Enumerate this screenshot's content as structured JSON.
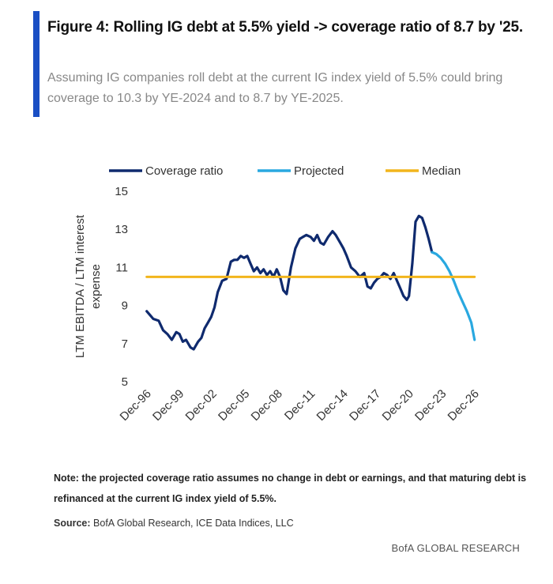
{
  "header": {
    "title": "Figure 4: Rolling IG debt at 5.5% yield -> coverage ratio of 8.7 by '25.",
    "subtitle": "Assuming IG companies roll debt at the current IG index yield of 5.5% could bring coverage to 10.3 by YE-2024 and to 8.7 by YE-2025."
  },
  "colors": {
    "accent": "#1a4fc4",
    "coverage": "#0f2a6e",
    "projected": "#29a8e0",
    "median": "#f2b51c"
  },
  "footer": {
    "note": "Note: the projected coverage ratio assumes no change in debt or earnings, and that maturing debt is refinanced at the current IG index yield of 5.5%.",
    "source_label": "Source:",
    "source_text": "BofA Global Research, ICE Data Indices, LLC",
    "brand": "BofA GLOBAL RESEARCH"
  },
  "chart_data": {
    "type": "line",
    "ylabel": "LTM EBITDA / LTM interest expense",
    "ylim": [
      5,
      15
    ],
    "yticks": [
      5,
      7,
      9,
      11,
      13,
      15
    ],
    "xlim": [
      1996.92,
      2026.92
    ],
    "xticks": [
      {
        "label": "Dec-96",
        "x": 1996.92
      },
      {
        "label": "Dec-99",
        "x": 1999.92
      },
      {
        "label": "Dec-02",
        "x": 2002.92
      },
      {
        "label": "Dec-05",
        "x": 2005.92
      },
      {
        "label": "Dec-08",
        "x": 2008.92
      },
      {
        "label": "Dec-11",
        "x": 2011.92
      },
      {
        "label": "Dec-14",
        "x": 2014.92
      },
      {
        "label": "Dec-17",
        "x": 2017.92
      },
      {
        "label": "Dec-20",
        "x": 2020.92
      },
      {
        "label": "Dec-23",
        "x": 2023.92
      },
      {
        "label": "Dec-26",
        "x": 2026.92
      }
    ],
    "grid": false,
    "legend": "top",
    "series": [
      {
        "name": "Coverage ratio",
        "x": [
          1996.9,
          1997.2,
          1997.5,
          1998.0,
          1998.4,
          1998.8,
          1999.2,
          1999.6,
          1999.9,
          2000.2,
          2000.5,
          2000.9,
          2001.2,
          2001.6,
          2001.9,
          2002.2,
          2002.5,
          2002.8,
          2003.1,
          2003.4,
          2003.8,
          2004.2,
          2004.6,
          2004.9,
          2005.2,
          2005.5,
          2005.8,
          2006.1,
          2006.4,
          2006.7,
          2007.0,
          2007.3,
          2007.6,
          2007.9,
          2008.2,
          2008.5,
          2008.8,
          2009.1,
          2009.4,
          2009.7,
          2010.1,
          2010.5,
          2010.9,
          2011.2,
          2011.5,
          2011.9,
          2012.2,
          2012.5,
          2012.8,
          2013.1,
          2013.5,
          2013.9,
          2014.2,
          2014.6,
          2014.9,
          2015.2,
          2015.6,
          2016.0,
          2016.4,
          2016.8,
          2017.1,
          2017.4,
          2017.7,
          2018.0,
          2018.3,
          2018.6,
          2018.9,
          2019.2,
          2019.5,
          2019.8,
          2020.1,
          2020.4,
          2020.7,
          2020.9,
          2021.2,
          2021.5,
          2021.8,
          2022.1,
          2022.4,
          2022.7,
          2023.0
        ],
        "y": [
          8.7,
          8.5,
          8.3,
          8.2,
          7.7,
          7.5,
          7.2,
          7.6,
          7.5,
          7.1,
          7.2,
          6.8,
          6.7,
          7.1,
          7.3,
          7.8,
          8.1,
          8.4,
          8.9,
          9.7,
          10.3,
          10.4,
          11.3,
          11.4,
          11.4,
          11.6,
          11.5,
          11.6,
          11.2,
          10.8,
          11.0,
          10.7,
          10.9,
          10.6,
          10.8,
          10.5,
          10.9,
          10.5,
          9.8,
          9.6,
          11.0,
          12.0,
          12.5,
          12.6,
          12.7,
          12.6,
          12.4,
          12.7,
          12.3,
          12.2,
          12.6,
          12.9,
          12.7,
          12.3,
          12.0,
          11.6,
          11.0,
          10.8,
          10.5,
          10.7,
          10.0,
          9.9,
          10.2,
          10.4,
          10.5,
          10.7,
          10.6,
          10.4,
          10.7,
          10.3,
          9.9,
          9.5,
          9.3,
          9.5,
          11.2,
          13.4,
          13.7,
          13.6,
          13.1,
          12.5,
          11.8
        ]
      },
      {
        "name": "Projected",
        "x": [
          2023.0,
          2023.4,
          2023.8,
          2024.2,
          2024.6,
          2025.0,
          2025.4,
          2025.8,
          2026.2,
          2026.6,
          2026.9
        ],
        "y": [
          11.8,
          11.7,
          11.5,
          11.2,
          10.8,
          10.3,
          9.7,
          9.2,
          8.7,
          8.1,
          7.2
        ]
      },
      {
        "name": "Median",
        "x": [
          1996.9,
          2026.9
        ],
        "y": [
          10.5,
          10.5
        ]
      }
    ]
  }
}
